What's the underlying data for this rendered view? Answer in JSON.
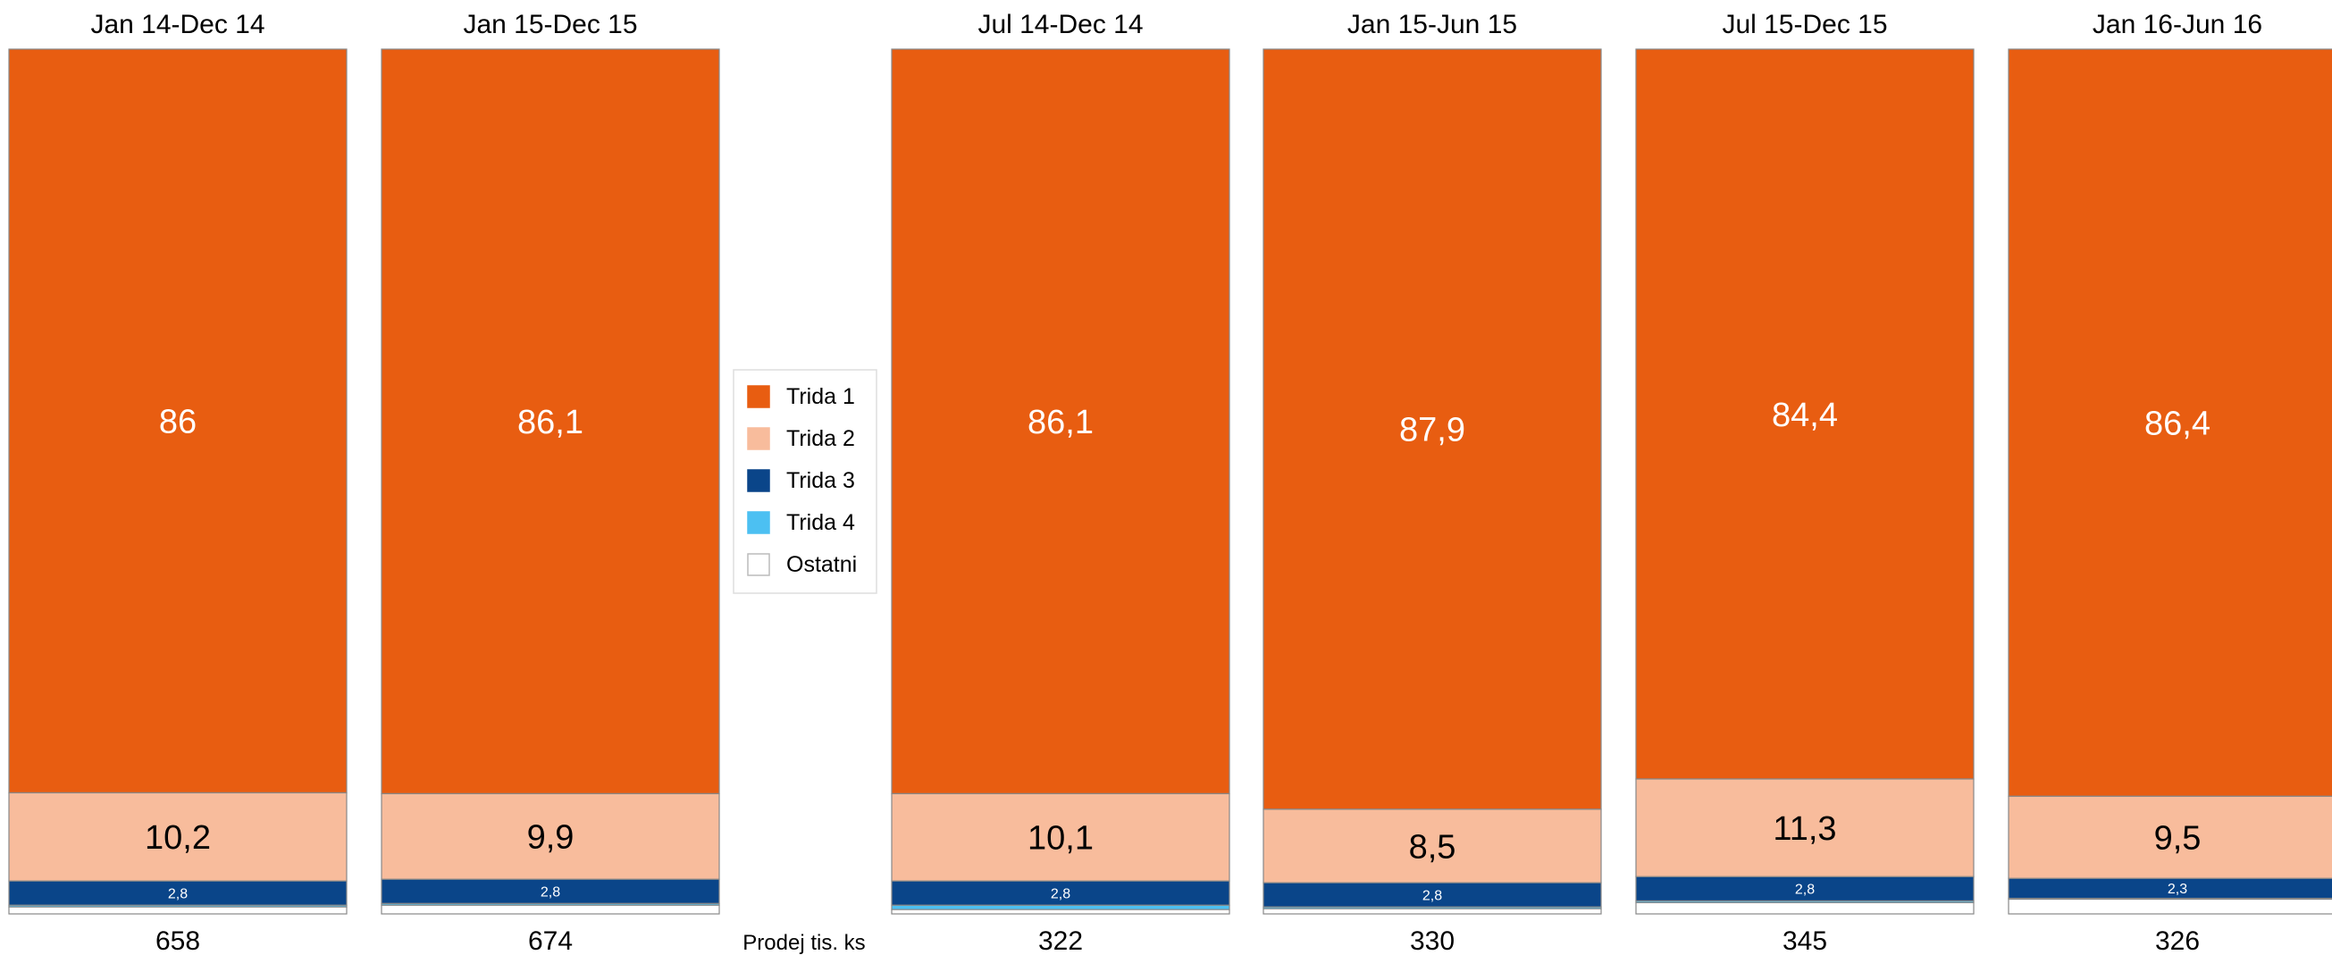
{
  "chart_data": {
    "type": "bar",
    "stacked": true,
    "normalized_percent": true,
    "series": [
      {
        "name": "Trida 1",
        "color": "#e85d11"
      },
      {
        "name": "Trida 2",
        "color": "#f8bc9c"
      },
      {
        "name": "Trida 3",
        "color": "#0a4589"
      },
      {
        "name": "Trida 4",
        "color": "#4cc0f2"
      },
      {
        "name": "Ostatni",
        "color": "#ffffff"
      }
    ],
    "bars": [
      {
        "category": "Jan 14-Dec 14",
        "total": "658",
        "values": [
          86,
          10.2,
          2.8,
          0.2,
          0.8
        ],
        "labels": [
          "86",
          "10,2",
          "2,8",
          "",
          ""
        ]
      },
      {
        "category": "Jan 15-Dec 15",
        "total": "674",
        "values": [
          86.1,
          9.9,
          2.8,
          0.2,
          1.0
        ],
        "labels": [
          "86,1",
          "9,9",
          "2,8",
          "",
          ""
        ]
      },
      {
        "category": "Jul 14-Dec 14",
        "total": "322",
        "values": [
          86.1,
          10.1,
          2.8,
          0.5,
          0.5
        ],
        "labels": [
          "86,1",
          "10,1",
          "2,8",
          "",
          ""
        ]
      },
      {
        "category": "Jan 15-Jun 15",
        "total": "330",
        "values": [
          87.9,
          8.5,
          2.8,
          0.2,
          0.6
        ],
        "labels": [
          "87,9",
          "8,5",
          "2,8",
          "",
          ""
        ]
      },
      {
        "category": "Jul 15-Dec 15",
        "total": "345",
        "values": [
          84.4,
          11.3,
          2.8,
          0.2,
          1.3
        ],
        "labels": [
          "84,4",
          "11,3",
          "2,8",
          "",
          ""
        ]
      },
      {
        "category": "Jan 16-Jun 16",
        "total": "326",
        "values": [
          86.4,
          9.5,
          2.3,
          0.1,
          1.7
        ],
        "labels": [
          "86,4",
          "9,5",
          "2,3",
          "",
          ""
        ]
      }
    ],
    "totals_label": "Prodej tis. ks",
    "legend_position": "middle-left, between second and third bar",
    "grid": false
  }
}
